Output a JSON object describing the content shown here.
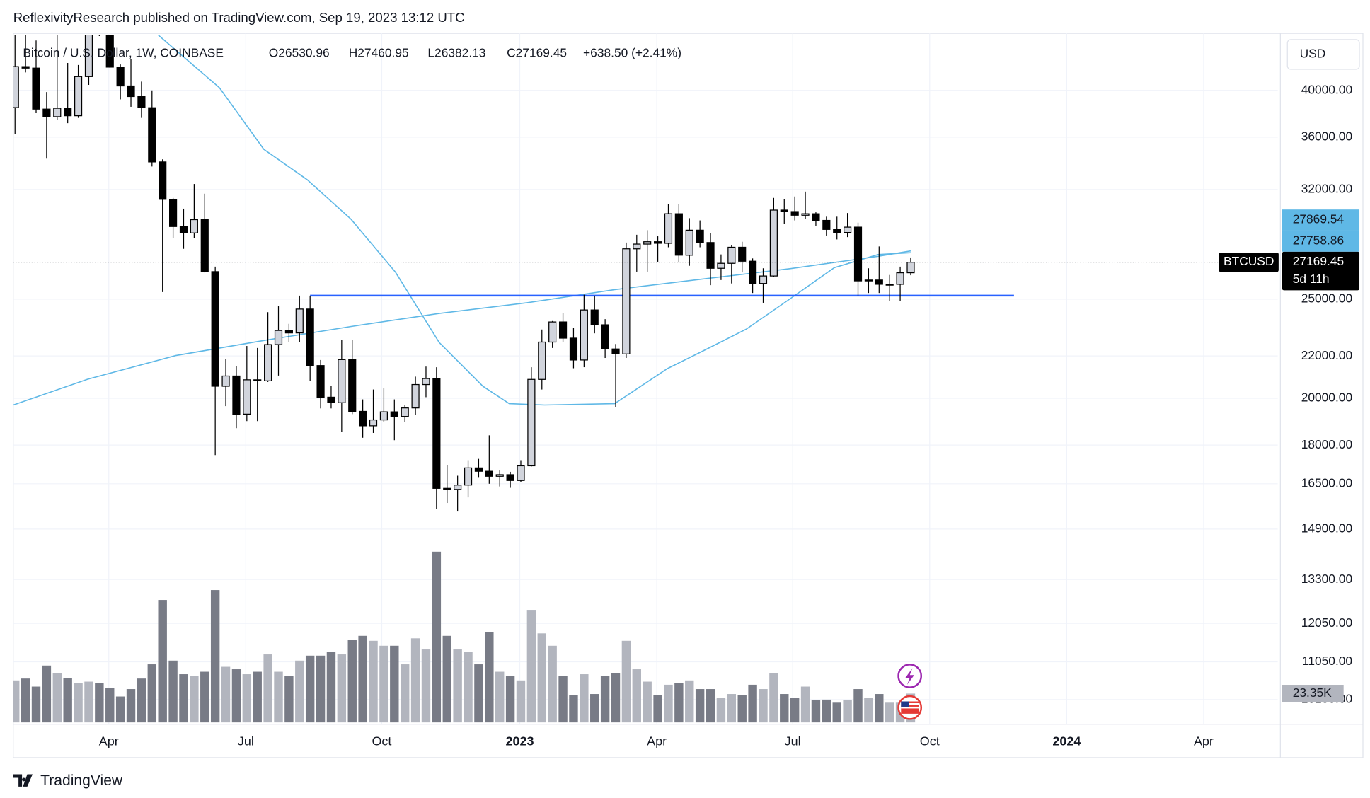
{
  "chart_data": {
    "type": "candlestick",
    "header": "ReflexivityResearch published on TradingView.com, Sep 19, 2023 13:12 UTC",
    "symbol": "Bitcoin / U.S. Dollar, 1W, COINBASE",
    "ohlc_text": [
      "O26530.96",
      "H27460.95",
      "L26382.13",
      "C27169.45",
      "+638.50 (+2.41%)"
    ],
    "currency": "USD",
    "ticker": "BTCUSD",
    "countdown": "5d 11h",
    "brand": "TradingView",
    "log": true,
    "grid": true,
    "xlim": [
      -0.17,
      119.83
    ],
    "xticks": [
      {
        "value": 8.9,
        "label": "Apr"
      },
      {
        "value": 21.9,
        "label": "Jul"
      },
      {
        "value": 34.8,
        "label": "Oct"
      },
      {
        "value": 47.9,
        "label": "2023",
        "bold": true
      },
      {
        "value": 60.9,
        "label": "Apr"
      },
      {
        "value": 73.8,
        "label": "Jul"
      },
      {
        "value": 86.8,
        "label": "Oct"
      },
      {
        "value": 99.8,
        "label": "2024",
        "bold": true
      },
      {
        "value": 112.8,
        "label": "Apr"
      }
    ],
    "ylim": [
      9640,
      45300
    ],
    "yticks": [
      {
        "value": 40000,
        "label": "40000.00"
      },
      {
        "value": 36000,
        "label": "36000.00"
      },
      {
        "value": 32000,
        "label": "32000.00"
      },
      {
        "value": 25000,
        "label": "25000.00"
      },
      {
        "value": 22000,
        "label": "22000.00"
      },
      {
        "value": 20000,
        "label": "20000.00"
      },
      {
        "value": 18000,
        "label": "18000.00"
      },
      {
        "value": 16500,
        "label": "16500.00"
      },
      {
        "value": 14900,
        "label": "14900.00"
      },
      {
        "value": 13300,
        "label": "13300.00"
      },
      {
        "value": 12050,
        "label": "12050.00"
      },
      {
        "value": 11050,
        "label": "11050.00"
      },
      {
        "value": 10150,
        "label": "10150.00"
      }
    ],
    "up_color": "#d1d4dc",
    "down_color": "#000000",
    "outline_color": "#000000",
    "candles": {
      "open": [
        38480,
        42200,
        42060,
        38350,
        37700,
        38420,
        37780,
        41260,
        46820,
        45810,
        42150,
        40400,
        39450,
        38470,
        34050,
        31300,
        29440,
        29020,
        29900,
        26600,
        20550,
        21030,
        19300,
        20850,
        20800,
        22570,
        23300,
        23170,
        24450,
        21530,
        20050,
        19800,
        21820,
        19420,
        18800,
        19050,
        19400,
        19200,
        19570,
        20630,
        20910,
        16330,
        16290,
        16450,
        17100,
        16970,
        16780,
        16840,
        16620,
        17180,
        20870,
        22700,
        23750,
        22900,
        21800,
        24400,
        23600,
        22350,
        22100,
        28000,
        28300,
        28450,
        28350,
        30300,
        27600,
        29200,
        28400,
        26800,
        27100,
        28100,
        27230,
        25900,
        26340,
        30550,
        30450,
        30200,
        30300,
        29850,
        29250,
        29050,
        29400,
        26050,
        26100,
        25850,
        25850,
        26530.96
      ],
      "high": [
        45500,
        45850,
        44750,
        39850,
        45400,
        42550,
        42350,
        47200,
        48200,
        47400,
        42400,
        42900,
        40800,
        40000,
        34250,
        31400,
        30650,
        32400,
        31700,
        26900,
        21850,
        21500,
        22500,
        22400,
        24280,
        24600,
        23650,
        25200,
        25200,
        21800,
        20580,
        22800,
        22800,
        19950,
        20400,
        20450,
        19950,
        19700,
        21000,
        21480,
        21450,
        17200,
        16800,
        17400,
        17450,
        18400,
        17000,
        16950,
        17400,
        21450,
        23350,
        23800,
        24250,
        23450,
        25250,
        25200,
        23900,
        22600,
        28400,
        28900,
        29200,
        28800,
        30950,
        30950,
        30000,
        29850,
        29000,
        27650,
        28250,
        28450,
        27400,
        26800,
        31400,
        31300,
        31500,
        31850,
        30400,
        30100,
        30100,
        30350,
        29700,
        26800,
        28150,
        26400,
        26900,
        27460.95
      ],
      "low": [
        36250,
        41650,
        38000,
        34300,
        37450,
        37150,
        37600,
        40500,
        45200,
        42100,
        39200,
        38550,
        37600,
        33700,
        25400,
        28700,
        28000,
        28700,
        26550,
        17600,
        19650,
        18700,
        19000,
        19000,
        20750,
        21050,
        22700,
        22700,
        20800,
        19550,
        19550,
        18540,
        19300,
        18300,
        18500,
        18950,
        18200,
        18950,
        19250,
        20050,
        15600,
        15800,
        15500,
        16000,
        16750,
        16500,
        16400,
        16350,
        16550,
        17150,
        20400,
        22400,
        22700,
        21400,
        21450,
        23150,
        21900,
        19600,
        21900,
        26600,
        26600,
        27200,
        28100,
        27150,
        26950,
        28100,
        25800,
        26100,
        25900,
        26550,
        25350,
        24800,
        26300,
        29600,
        29850,
        29950,
        29500,
        28850,
        28600,
        28750,
        25200,
        25350,
        25350,
        24900,
        24900,
        26382.13
      ],
      "close": [
        42200,
        42060,
        38350,
        37700,
        38420,
        37780,
        41260,
        46820,
        45810,
        42150,
        40400,
        39450,
        38470,
        34050,
        31300,
        29440,
        29020,
        29900,
        26600,
        20550,
        21030,
        19300,
        20850,
        20800,
        22570,
        23300,
        23170,
        24450,
        21530,
        20050,
        19800,
        21820,
        19420,
        18800,
        19050,
        19400,
        19200,
        19570,
        20630,
        20910,
        16330,
        16290,
        16450,
        17100,
        16970,
        16780,
        16840,
        16620,
        17180,
        20870,
        22700,
        23750,
        22900,
        21800,
        24400,
        23600,
        22350,
        22100,
        28000,
        28300,
        28450,
        28350,
        30300,
        27600,
        29200,
        28400,
        26800,
        27100,
        28100,
        27230,
        25900,
        26340,
        30550,
        30450,
        30200,
        30300,
        29850,
        29250,
        29050,
        29400,
        26050,
        26100,
        25850,
        25850,
        26530.96,
        27169.45
      ]
    },
    "volume": {
      "ylim": [
        0,
        140
      ],
      "up_color": "#b2b5be",
      "down_color": "#787b86",
      "tag": "23.35K",
      "values": [
        34,
        35.5,
        29,
        46,
        40,
        36,
        32,
        33,
        32,
        28,
        21,
        27,
        35.5,
        47,
        99,
        50,
        39,
        37.5,
        41,
        107,
        45,
        43,
        39,
        41,
        55,
        41,
        37.5,
        50,
        54,
        54,
        57,
        55,
        67,
        70,
        66,
        62,
        62,
        47,
        68,
        59,
        138,
        70,
        59,
        57,
        47,
        73,
        41,
        37.5,
        34,
        91,
        72,
        62,
        37.5,
        22,
        39,
        23,
        37.5,
        40,
        66,
        43,
        33,
        22,
        30.5,
        32,
        34,
        27,
        27,
        20,
        23,
        22,
        30.5,
        27,
        40,
        23,
        20,
        29,
        18,
        18.5,
        16,
        18,
        27,
        20,
        23,
        16,
        16,
        23.35
      ]
    },
    "lines": [
      {
        "color": "#5fb8e6",
        "x": [
          -0.17,
          6.9,
          15.25,
          23.6,
          31.9,
          40.25,
          48.6,
          56.9,
          65.25,
          73.6,
          81.9,
          85
        ],
        "values": [
          19700,
          20880,
          22020,
          22780,
          23510,
          24210,
          24800,
          25540,
          26160,
          26780,
          27530,
          27869.54
        ]
      },
      {
        "color": "#5fb8e6",
        "x": [
          13.6,
          19.4,
          23.6,
          27.75,
          31.9,
          36.1,
          40.25,
          44.4,
          46.9,
          50.25,
          56.9,
          61.9,
          65.25,
          69.4,
          73.6,
          77.75,
          81.9,
          85
        ],
        "values": [
          45300,
          40240,
          35040,
          32700,
          29920,
          26570,
          22680,
          20550,
          19760,
          19700,
          19760,
          21380,
          22240,
          23370,
          25040,
          26840,
          27640,
          27758.86
        ]
      }
    ],
    "tag_color": "#5fb8e6",
    "hline": {
      "value": 25200,
      "x": [
        28,
        94.8
      ],
      "color": "#2962ff"
    }
  }
}
